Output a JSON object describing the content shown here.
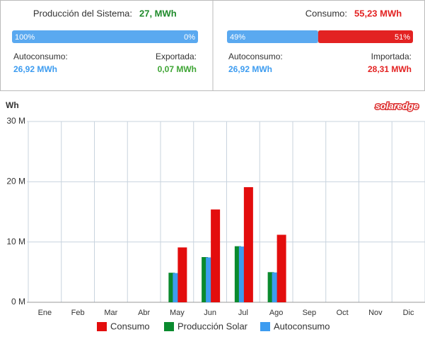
{
  "panels": [
    {
      "title": "Producción del Sistema:",
      "total": "27, MWh",
      "total_color": "#1e8a2a",
      "bar": {
        "values": [
          100,
          0
        ],
        "value_labels": [
          "100%",
          "0%"
        ],
        "colors": [
          "#5aa9f0",
          "#e32222"
        ]
      },
      "left_label": "Autoconsumo:",
      "left_value": "26,92 MWh",
      "left_color": "#3d9cf0",
      "right_label": "Exportada:",
      "right_value": "0,07 MWh",
      "right_color": "#3fa535"
    },
    {
      "title": "Consumo:",
      "total": "55,23 MWh",
      "total_color": "#e32222",
      "bar": {
        "values": [
          49,
          51
        ],
        "value_labels": [
          "49%",
          "51%"
        ],
        "colors": [
          "#5aa9f0",
          "#e32222"
        ]
      },
      "left_label": "Autoconsumo:",
      "left_value": "26,92 MWh",
      "left_color": "#3d9cf0",
      "right_label": "Importada:",
      "right_value": "28,31 MWh",
      "right_color": "#e32222"
    }
  ],
  "chart_data": {
    "type": "bar",
    "y_label": "Wh",
    "logo": "solaredge",
    "categories": [
      "Ene",
      "Feb",
      "Mar",
      "Abr",
      "May",
      "Jun",
      "Jul",
      "Ago",
      "Sep",
      "Oct",
      "Nov",
      "Dic"
    ],
    "series": [
      {
        "name": "Consumo",
        "color": "#e30d0d",
        "values": [
          null,
          null,
          null,
          null,
          9100000,
          15400000,
          19100000,
          11200000,
          null,
          null,
          null,
          null
        ]
      },
      {
        "name": "Producción Solar",
        "color": "#0a8a2e",
        "values": [
          null,
          null,
          null,
          null,
          4900000,
          7500000,
          9300000,
          5000000,
          null,
          null,
          null,
          null
        ]
      },
      {
        "name": "Autoconsumo",
        "color": "#3d9cf0",
        "values": [
          null,
          null,
          null,
          null,
          4850000,
          7450000,
          9250000,
          4950000,
          null,
          null,
          null,
          null
        ]
      }
    ],
    "ylim": [
      0,
      30000000
    ],
    "yticks": [
      {
        "value": 0,
        "label": "0 M"
      },
      {
        "value": 10000000,
        "label": "10 M"
      },
      {
        "value": 20000000,
        "label": "20 M"
      },
      {
        "value": 30000000,
        "label": "30 M"
      }
    ],
    "grid": true
  }
}
